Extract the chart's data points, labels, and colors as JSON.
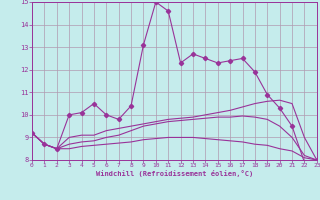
{
  "xlabel": "Windchill (Refroidissement éolien,°C)",
  "xlim": [
    0,
    23
  ],
  "ylim": [
    8,
    15
  ],
  "yticks": [
    8,
    9,
    10,
    11,
    12,
    13,
    14,
    15
  ],
  "xticks": [
    0,
    1,
    2,
    3,
    4,
    5,
    6,
    7,
    8,
    9,
    10,
    11,
    12,
    13,
    14,
    15,
    16,
    17,
    18,
    19,
    20,
    21,
    22,
    23
  ],
  "background_color": "#c5ecec",
  "line_color": "#993399",
  "grid_color": "#b09ab0",
  "series1": {
    "x": [
      0,
      1,
      2,
      3,
      4,
      5,
      6,
      7,
      8,
      9,
      10,
      11,
      12,
      13,
      14,
      15,
      16,
      17,
      18,
      19,
      20,
      21,
      22,
      23
    ],
    "y": [
      9.2,
      8.7,
      8.5,
      10.0,
      10.1,
      10.5,
      10.0,
      9.8,
      10.4,
      13.1,
      15.0,
      14.6,
      12.3,
      12.7,
      12.5,
      12.3,
      12.4,
      12.5,
      11.9,
      10.9,
      10.3,
      9.5,
      7.9,
      8.0
    ]
  },
  "series2": {
    "x": [
      0,
      1,
      2,
      3,
      4,
      5,
      6,
      7,
      8,
      9,
      10,
      11,
      12,
      13,
      14,
      15,
      16,
      17,
      18,
      19,
      20,
      21,
      22,
      23
    ],
    "y": [
      9.2,
      8.7,
      8.5,
      9.0,
      9.1,
      9.1,
      9.3,
      9.4,
      9.5,
      9.6,
      9.7,
      9.8,
      9.85,
      9.9,
      10.0,
      10.1,
      10.2,
      10.35,
      10.5,
      10.6,
      10.65,
      10.5,
      9.0,
      8.0
    ]
  },
  "series3": {
    "x": [
      0,
      1,
      2,
      3,
      4,
      5,
      6,
      7,
      8,
      9,
      10,
      11,
      12,
      13,
      14,
      15,
      16,
      17,
      18,
      19,
      20,
      21,
      22,
      23
    ],
    "y": [
      9.2,
      8.7,
      8.5,
      8.7,
      8.8,
      8.85,
      9.0,
      9.1,
      9.3,
      9.5,
      9.6,
      9.7,
      9.75,
      9.8,
      9.85,
      9.9,
      9.9,
      9.95,
      9.9,
      9.8,
      9.5,
      9.0,
      8.2,
      8.0
    ]
  },
  "series4": {
    "x": [
      0,
      1,
      2,
      3,
      4,
      5,
      6,
      7,
      8,
      9,
      10,
      11,
      12,
      13,
      14,
      15,
      16,
      17,
      18,
      19,
      20,
      21,
      22,
      23
    ],
    "y": [
      9.2,
      8.7,
      8.5,
      8.5,
      8.6,
      8.65,
      8.7,
      8.75,
      8.8,
      8.9,
      8.95,
      9.0,
      9.0,
      9.0,
      8.95,
      8.9,
      8.85,
      8.8,
      8.7,
      8.65,
      8.5,
      8.4,
      8.1,
      8.0
    ]
  }
}
